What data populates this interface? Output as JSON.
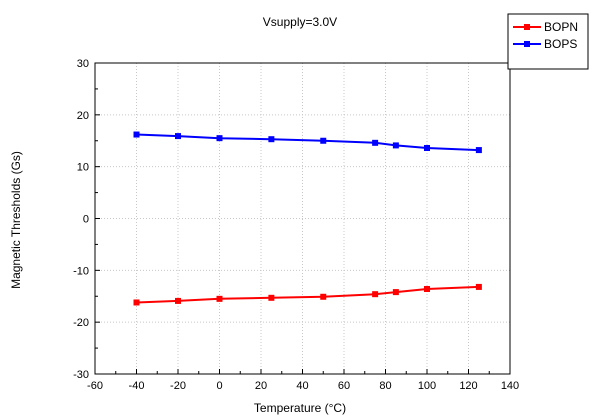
{
  "chart_data": {
    "type": "line",
    "title": "Vsupply=3.0V",
    "xlabel": "Temperature (°C)",
    "ylabel": "Magnetic Thresholds (Gs)",
    "xlim": [
      -60,
      140
    ],
    "ylim": [
      -30,
      30
    ],
    "xticks": [
      -60,
      -40,
      -20,
      0,
      20,
      40,
      60,
      80,
      100,
      120,
      140
    ],
    "yticks": [
      -30,
      -20,
      -10,
      0,
      10,
      20,
      30
    ],
    "grid": true,
    "legend_position": "top-right",
    "x": [
      -40,
      -20,
      0,
      25,
      50,
      75,
      85,
      100,
      125
    ],
    "series": [
      {
        "name": "BOPN",
        "color": "#ff0000",
        "values": [
          -16.2,
          -15.9,
          -15.5,
          -15.3,
          -15.1,
          -14.6,
          -14.2,
          -13.6,
          -13.2
        ]
      },
      {
        "name": "BOPS",
        "color": "#0000ff",
        "values": [
          16.2,
          15.9,
          15.5,
          15.3,
          15.0,
          14.6,
          14.1,
          13.6,
          13.2
        ]
      }
    ]
  }
}
